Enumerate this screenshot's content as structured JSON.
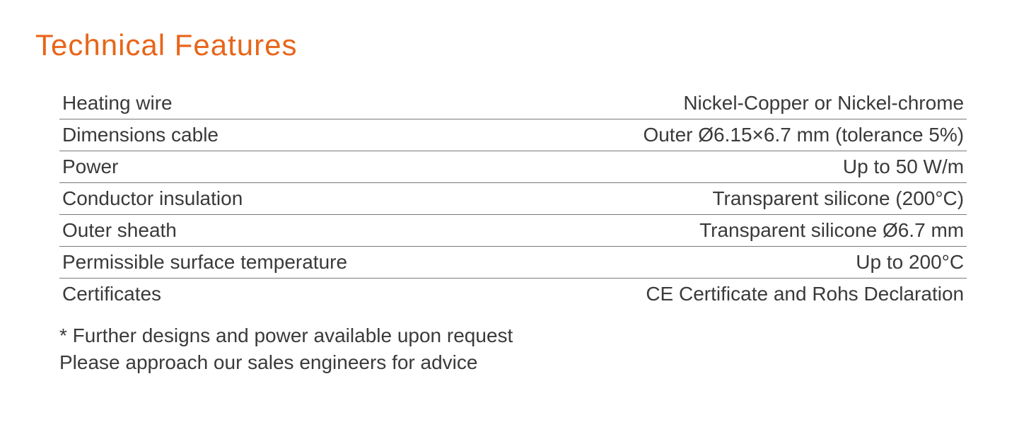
{
  "title": "Technical Features",
  "title_color": "#e8651a",
  "text_color": "#3a3a3a",
  "divider_color": "#7a7a7a",
  "background_color": "#ffffff",
  "title_fontsize": 42,
  "row_fontsize": 28,
  "footnote_fontsize": 28,
  "rows": [
    {
      "label": "Heating wire",
      "value": "Nickel-Copper or Nickel-chrome"
    },
    {
      "label": "Dimensions cable",
      "value": "Outer Ø6.15×6.7 mm (tolerance 5%)"
    },
    {
      "label": "Power",
      "value": "Up to 50 W/m"
    },
    {
      "label": "Conductor insulation",
      "value": "Transparent silicone (200°C)"
    },
    {
      "label": "Outer sheath",
      "value": "Transparent silicone Ø6.7 mm"
    },
    {
      "label": "Permissible surface temperature",
      "value": "Up to 200°C"
    },
    {
      "label": "Certificates",
      "value": "CE Certificate and Rohs Declaration"
    }
  ],
  "footnote_line1": "* Further designs and power available upon request",
  "footnote_line2": "Please approach our sales engineers for advice"
}
